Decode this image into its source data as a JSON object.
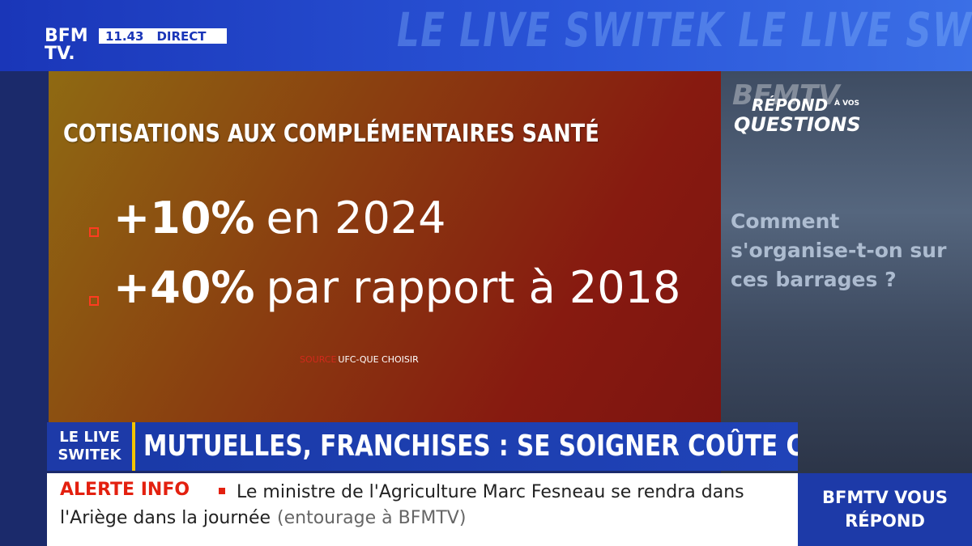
{
  "header": {
    "logo": [
      "BFM",
      "TV."
    ],
    "time": "11.43",
    "status": "DIRECT",
    "watermark": "LE LIVE SWITEK LE LIVE SWITEK LE LIVE SWITEK"
  },
  "graphic": {
    "title": "COTISATIONS AUX COMPLÉMENTAIRES SANTÉ",
    "items": [
      {
        "figure": "+10%",
        "text": "en 2024"
      },
      {
        "figure": "+40%",
        "text": "par rapport à 2018"
      }
    ],
    "source_label": "SOURCE",
    "source": "UFC-QUE CHOISIR"
  },
  "side_panel": {
    "brand": "BFMTV",
    "repond": "RÉPOND",
    "a_vos": "À VOS",
    "questions": "QUESTIONS",
    "question": "Comment s'organise-t-on sur ces barrages ?"
  },
  "lower_third": {
    "label": [
      "LE LIVE",
      "SWITEK"
    ],
    "headline": "MUTUELLES, FRANCHISES : SE SOIGNER COÛTE CHER"
  },
  "ticker": {
    "tag": "ALERTE INFO",
    "text": "Le ministre de l'Agriculture Marc Fesneau se rendra dans l'Ariège dans la journée",
    "credit": "(entourage à BFMTV)"
  },
  "corner": [
    "BFMTV VOUS",
    "RÉPOND"
  ]
}
